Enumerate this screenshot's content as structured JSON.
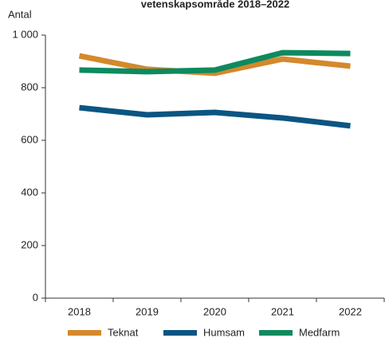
{
  "chart_data": {
    "type": "line",
    "title": "vetenskapsområde 2018–2022",
    "y_label": "Antal",
    "categories": [
      "2018",
      "2019",
      "2020",
      "2021",
      "2022"
    ],
    "series": [
      {
        "name": "Teknat",
        "color": "#d4892c",
        "values": [
          921,
          870,
          855,
          909,
          882
        ]
      },
      {
        "name": "Humsam",
        "color": "#0b5582",
        "values": [
          724,
          697,
          706,
          685,
          655
        ]
      },
      {
        "name": "Medfarm",
        "color": "#0e8a5f",
        "values": [
          867,
          861,
          867,
          933,
          930
        ]
      }
    ],
    "ylim": [
      0,
      1000
    ],
    "yticks": [
      0,
      200,
      400,
      600,
      800,
      {
        "value": 1000,
        "label": "1 000"
      }
    ],
    "grid": false
  }
}
